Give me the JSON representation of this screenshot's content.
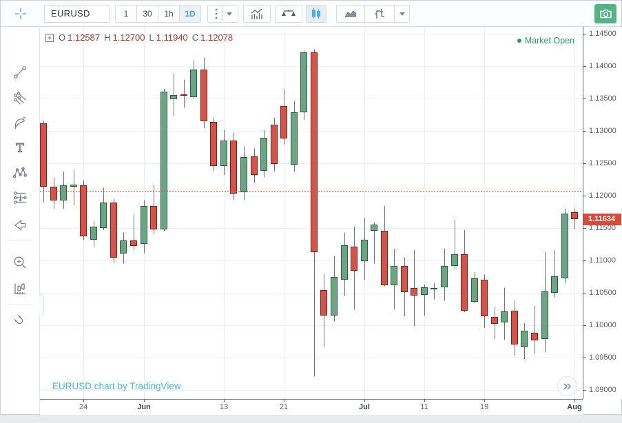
{
  "toolbar": {
    "symbol": "EURUSD",
    "timeframes": [
      {
        "label": "1",
        "active": false
      },
      {
        "label": "30",
        "active": false
      },
      {
        "label": "1h",
        "active": false
      },
      {
        "label": "1D",
        "active": true
      }
    ],
    "icon_buttons": [
      "more-intervals",
      "interval-dropdown",
      "indicators",
      "compare",
      "chart-type-candles",
      "chart-type-line",
      "chart-type-step",
      "chart-type-dropdown",
      "screenshot-camera"
    ],
    "active_chart_type": "candles",
    "accent_blue": "#42a0de",
    "camera_green": "#55b287"
  },
  "sidebar": {
    "tools": [
      {
        "name": "crosshair-cursor"
      },
      {
        "name": "trend-line"
      },
      {
        "name": "pitchfork"
      },
      {
        "name": "brush"
      },
      {
        "name": "text"
      },
      {
        "name": "xabcd-pattern"
      },
      {
        "name": "forecast"
      },
      {
        "name": "arrow-left"
      },
      {
        "name": "zoom-in"
      },
      {
        "name": "measure"
      },
      {
        "name": "magnet"
      }
    ]
  },
  "legend": {
    "ohlc": [
      {
        "label": "O",
        "value": "1.12587"
      },
      {
        "label": "H",
        "value": "1.12700"
      },
      {
        "label": "L",
        "value": "1.11940"
      },
      {
        "label": "C",
        "value": "1.12078"
      }
    ],
    "value_color": "#a03a30"
  },
  "status": {
    "market_open": "Market Open",
    "color": "#30995f"
  },
  "watermark": {
    "text": "EURUSD chart by TradingView",
    "color": "#4db2e8"
  },
  "price_axis": {
    "ticks": [
      "1.14500",
      "1.14000",
      "1.13500",
      "1.13000",
      "1.12500",
      "1.12000",
      "1.11500",
      "1.11000",
      "1.10500",
      "1.10000",
      "1.09500",
      "1.09000"
    ],
    "last_price": "1.11634",
    "last_price_value": 1.11634,
    "badge_color": "#d84b3a"
  },
  "time_axis": {
    "labels": [
      {
        "index": 4,
        "text": "24",
        "bold": false
      },
      {
        "index": 10,
        "text": "Jun",
        "bold": true
      },
      {
        "index": 18,
        "text": "13",
        "bold": false
      },
      {
        "index": 24,
        "text": "21",
        "bold": false
      },
      {
        "index": 32,
        "text": "Jul",
        "bold": true
      },
      {
        "index": 38,
        "text": "11",
        "bold": false
      },
      {
        "index": 44,
        "text": "19",
        "bold": false
      },
      {
        "index": 53,
        "text": "Aug",
        "bold": true
      }
    ]
  },
  "chart_data": {
    "type": "candlestick",
    "symbol": "EURUSD",
    "interval": "1D",
    "legend_position": "top-left",
    "grid": true,
    "ylim": [
      1.08862,
      1.14606
    ],
    "price_gridlines": [
      1.145,
      1.14,
      1.135,
      1.13,
      1.125,
      1.12,
      1.115,
      1.11,
      1.105,
      1.1,
      1.095,
      1.09
    ],
    "prev_close_line": 1.12078,
    "last_price": 1.11634,
    "colors": {
      "up_fill": "#6ba583",
      "up_border": "#2a5e41",
      "down_fill": "#d5544a",
      "down_border": "#7c221a",
      "wick": "#6e7177",
      "grid": "#edf0f3",
      "prev_close": "#e8503f"
    },
    "candles": [
      [
        1.1312,
        1.1316,
        1.119,
        1.1214
      ],
      [
        1.1214,
        1.1228,
        1.1179,
        1.1193
      ],
      [
        1.1193,
        1.1237,
        1.118,
        1.1216
      ],
      [
        1.1214,
        1.124,
        1.1185,
        1.1217
      ],
      [
        1.1216,
        1.1224,
        1.1131,
        1.1137
      ],
      [
        1.1132,
        1.1161,
        1.1121,
        1.1152
      ],
      [
        1.115,
        1.1212,
        1.1147,
        1.1189
      ],
      [
        1.1189,
        1.1196,
        1.1097,
        1.1104
      ],
      [
        1.1111,
        1.1143,
        1.1095,
        1.1131
      ],
      [
        1.1131,
        1.1171,
        1.1116,
        1.1122
      ],
      [
        1.1126,
        1.1193,
        1.1111,
        1.1184
      ],
      [
        1.1184,
        1.1217,
        1.1141,
        1.1148
      ],
      [
        1.1148,
        1.1365,
        1.1145,
        1.1361
      ],
      [
        1.1349,
        1.1389,
        1.1323,
        1.1355
      ],
      [
        1.1356,
        1.1379,
        1.1336,
        1.1354
      ],
      [
        1.1352,
        1.1409,
        1.135,
        1.1395
      ],
      [
        1.1395,
        1.1413,
        1.1304,
        1.1315
      ],
      [
        1.1314,
        1.132,
        1.1238,
        1.1246
      ],
      [
        1.1246,
        1.1301,
        1.1232,
        1.1285
      ],
      [
        1.1285,
        1.1297,
        1.1193,
        1.1203
      ],
      [
        1.1205,
        1.1276,
        1.1193,
        1.126
      ],
      [
        1.1261,
        1.1273,
        1.122,
        1.1232
      ],
      [
        1.1238,
        1.1301,
        1.1228,
        1.1289
      ],
      [
        1.131,
        1.132,
        1.1238,
        1.1249
      ],
      [
        1.1338,
        1.1365,
        1.1279,
        1.1288
      ],
      [
        1.1248,
        1.1346,
        1.1237,
        1.1329
      ],
      [
        1.1329,
        1.1423,
        1.1317,
        1.1421
      ],
      [
        1.1421,
        1.1426,
        1.0921,
        1.1113
      ],
      [
        1.1054,
        1.1079,
        1.0966,
        1.1015
      ],
      [
        1.1015,
        1.1107,
        1.1006,
        1.1074
      ],
      [
        1.107,
        1.1143,
        1.1046,
        1.1123
      ],
      [
        1.1121,
        1.1152,
        1.1024,
        1.1084
      ],
      [
        1.1099,
        1.1166,
        1.107,
        1.1132
      ],
      [
        1.1146,
        1.1159,
        1.1095,
        1.1155
      ],
      [
        1.1146,
        1.1184,
        1.106,
        1.1062
      ],
      [
        1.1062,
        1.1118,
        1.1025,
        1.1092
      ],
      [
        1.1092,
        1.1105,
        1.1014,
        1.1051
      ],
      [
        1.1057,
        1.1116,
        1.0999,
        1.1046
      ],
      [
        1.1047,
        1.1063,
        1.1015,
        1.1059
      ],
      [
        1.1055,
        1.1065,
        1.104,
        1.1057
      ],
      [
        1.1058,
        1.1118,
        1.1038,
        1.1092
      ],
      [
        1.1092,
        1.1163,
        1.1086,
        1.111
      ],
      [
        1.111,
        1.1147,
        1.102,
        1.1022
      ],
      [
        1.1036,
        1.1082,
        1.1034,
        1.1072
      ],
      [
        1.107,
        1.1078,
        1.0996,
        1.1014
      ],
      [
        1.1013,
        1.1028,
        1.0978,
        1.1002
      ],
      [
        1.1004,
        1.1058,
        1.0977,
        1.1021
      ],
      [
        1.1022,
        1.1038,
        1.0952,
        1.097
      ],
      [
        1.0966,
        1.1003,
        1.0948,
        1.0991
      ],
      [
        1.0988,
        1.103,
        1.0956,
        1.0977
      ],
      [
        1.0979,
        1.1113,
        1.0958,
        1.1052
      ],
      [
        1.105,
        1.1116,
        1.1043,
        1.1076
      ],
      [
        1.1072,
        1.118,
        1.1065,
        1.1172
      ],
      [
        1.1174,
        1.118,
        1.1148,
        1.11634
      ]
    ]
  },
  "jump_button": {
    "icon": "chevrons-right"
  }
}
